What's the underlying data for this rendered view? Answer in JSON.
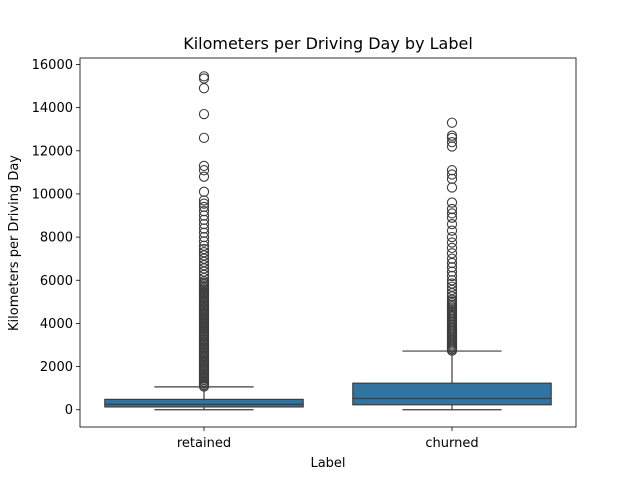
{
  "chart_data": {
    "type": "box",
    "title": "Kilometers per Driving Day by Label",
    "xlabel": "Label",
    "ylabel": "Kilometers per Driving Day",
    "categories": [
      "retained",
      "churned"
    ],
    "ylim": [
      -800,
      16300
    ],
    "yticks": [
      0,
      2000,
      4000,
      6000,
      8000,
      10000,
      12000,
      14000,
      16000
    ],
    "ytick_labels": [
      "0",
      "2000",
      "4000",
      "6000",
      "8000",
      "10000",
      "12000",
      "14000",
      "16000"
    ],
    "grid": false,
    "box_color": "#3274a1",
    "boxes": [
      {
        "name": "retained",
        "whisker_low": 0,
        "q1": 130,
        "median": 250,
        "q3": 480,
        "whisker_high": 1060,
        "outliers": [
          1080,
          1150,
          1220,
          1300,
          1380,
          1450,
          1520,
          1600,
          1680,
          1750,
          1830,
          1900,
          1980,
          2050,
          2130,
          2200,
          2280,
          2350,
          2430,
          2500,
          2580,
          2650,
          2730,
          2800,
          2880,
          2950,
          3030,
          3100,
          3180,
          3250,
          3330,
          3400,
          3480,
          3550,
          3630,
          3700,
          3780,
          3850,
          3930,
          4000,
          4080,
          4150,
          4230,
          4300,
          4380,
          4450,
          4530,
          4600,
          4680,
          4750,
          4830,
          4900,
          4980,
          5050,
          5130,
          5200,
          5280,
          5350,
          5430,
          5500,
          5580,
          5650,
          5730,
          5800,
          5880,
          5950,
          6100,
          6250,
          6400,
          6550,
          6700,
          6850,
          7000,
          7150,
          7300,
          7450,
          7600,
          7800,
          8000,
          8200,
          8400,
          8600,
          8800,
          9000,
          9200,
          9400,
          9550,
          9700,
          10100,
          10800,
          11100,
          11300,
          12600,
          13700,
          14900,
          15350,
          15450
        ]
      },
      {
        "name": "churned",
        "whisker_low": 0,
        "q1": 230,
        "median": 520,
        "q3": 1230,
        "whisker_high": 2720,
        "outliers": [
          2740,
          2800,
          2870,
          2940,
          3010,
          3080,
          3150,
          3220,
          3290,
          3360,
          3430,
          3500,
          3570,
          3640,
          3710,
          3780,
          3850,
          3920,
          3990,
          4060,
          4130,
          4200,
          4270,
          4340,
          4410,
          4480,
          4550,
          4620,
          4700,
          4780,
          4860,
          4940,
          5020,
          5100,
          5250,
          5400,
          5550,
          5700,
          5850,
          6000,
          6200,
          6400,
          6600,
          6800,
          7000,
          7250,
          7500,
          7750,
          8000,
          8300,
          8600,
          8900,
          9100,
          9300,
          9600,
          10300,
          10700,
          10900,
          11100,
          12200,
          12400,
          12600,
          12700,
          13300
        ]
      }
    ]
  }
}
